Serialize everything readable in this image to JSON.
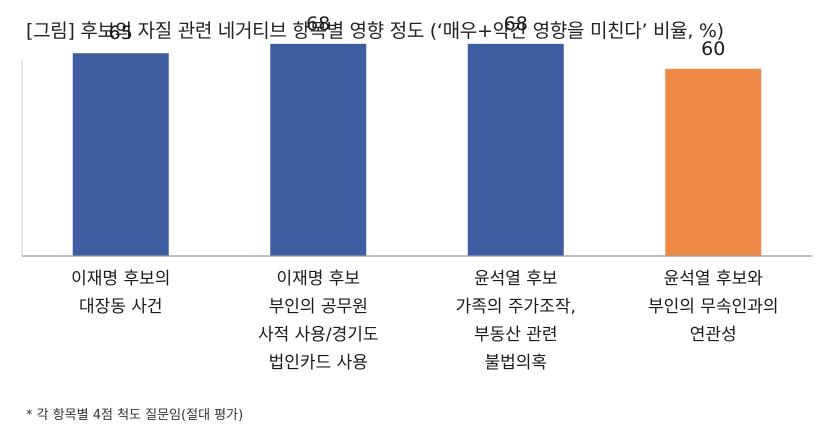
{
  "chart_data": {
    "type": "bar",
    "title": "[그림] 후보의 자질 관련 네거티브 항목별 영향 정도 (‘매우+약간 영향을 미친다’ 비율, %)",
    "categories": [
      [
        "이재명 후보의",
        "대장동 사건"
      ],
      [
        "이재명 후보",
        "부인의 공무원",
        "사적 사용/경기도",
        "법인카드 사용"
      ],
      [
        "윤석열 후보",
        "가족의 주가조작,",
        "부동산 관련",
        "불법의혹"
      ],
      [
        "윤석열 후보와",
        "부인의 무속인과의",
        "연관성"
      ]
    ],
    "values": [
      65,
      68,
      68,
      60
    ],
    "data_labels": [
      "65",
      "68",
      "68",
      "60"
    ],
    "colors": [
      "#3f5ea1",
      "#3f5ea1",
      "#3f5ea1",
      "#ee8a46"
    ],
    "ylim": [
      0,
      100
    ],
    "xlabel": "",
    "ylabel": "",
    "grid": false
  },
  "footnote": "* 각 항목별 4점 척도 질문임(절대 평가)"
}
